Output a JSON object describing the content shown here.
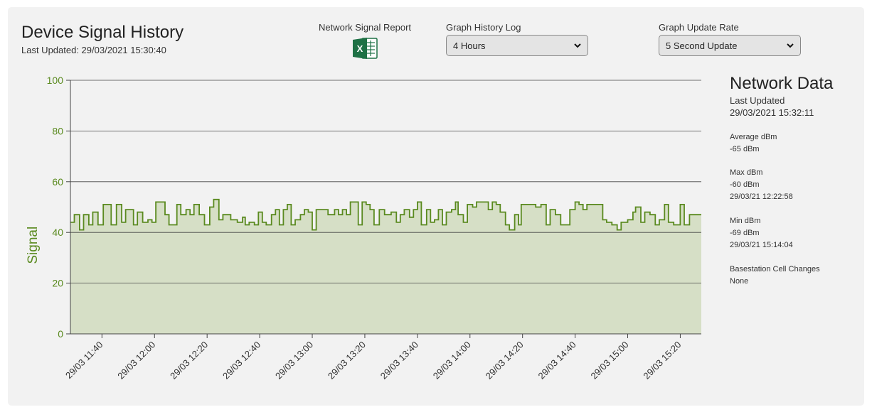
{
  "header": {
    "title": "Device Signal History",
    "last_updated": "Last Updated: 29/03/2021 15:30:40"
  },
  "report": {
    "label": "Network Signal Report",
    "icon": "excel-icon"
  },
  "history_select": {
    "label": "Graph History Log",
    "value": "4 Hours"
  },
  "rate_select": {
    "label": "Graph Update Rate",
    "value": "5 Second Update"
  },
  "colors": {
    "accent": "#5a8a1f",
    "fill": "#d6dfc6",
    "grid": "#444444"
  },
  "chart_data": {
    "type": "area",
    "ylabel": "Signal",
    "xlabel": "",
    "title": "",
    "ylim": [
      0,
      100
    ],
    "yticks": [
      0,
      20,
      40,
      60,
      80,
      100
    ],
    "xticks": [
      "29/03 11:40",
      "29/03 12:00",
      "29/03 12:20",
      "29/03 12:40",
      "29/03 13:00",
      "29/03 13:20",
      "29/03 13:40",
      "29/03 14:00",
      "29/03 14:20",
      "29/03 14:40",
      "29/03 15:00",
      "29/03 15:20"
    ],
    "x_start_minutes": 688,
    "x_end_minutes": 928,
    "series": [
      {
        "step": true,
        "points": [
          [
            688.0,
            44
          ],
          [
            689.5,
            47
          ],
          [
            691.5,
            41
          ],
          [
            693.0,
            47
          ],
          [
            695.0,
            43
          ],
          [
            696.5,
            48
          ],
          [
            698.5,
            43
          ],
          [
            700.5,
            51
          ],
          [
            703.5,
            43
          ],
          [
            705.5,
            51
          ],
          [
            707.5,
            44
          ],
          [
            709.0,
            49
          ],
          [
            712.0,
            43
          ],
          [
            713.5,
            48
          ],
          [
            715.5,
            44
          ],
          [
            717.5,
            45
          ],
          [
            719.0,
            44
          ],
          [
            720.5,
            52
          ],
          [
            724.0,
            47
          ],
          [
            725.5,
            43
          ],
          [
            728.5,
            51
          ],
          [
            730.0,
            47
          ],
          [
            732.0,
            49
          ],
          [
            733.5,
            47
          ],
          [
            735.0,
            51
          ],
          [
            737.0,
            47
          ],
          [
            739.0,
            43
          ],
          [
            741.0,
            50
          ],
          [
            742.5,
            53
          ],
          [
            744.5,
            45
          ],
          [
            746.0,
            47
          ],
          [
            749.0,
            45
          ],
          [
            751.5,
            44
          ],
          [
            753.5,
            46
          ],
          [
            754.5,
            43
          ],
          [
            756.0,
            44
          ],
          [
            758.0,
            43
          ],
          [
            759.5,
            48
          ],
          [
            761.0,
            44
          ],
          [
            762.5,
            43
          ],
          [
            764.5,
            47
          ],
          [
            766.0,
            49
          ],
          [
            767.5,
            43
          ],
          [
            769.0,
            49
          ],
          [
            770.5,
            51
          ],
          [
            772.0,
            43
          ],
          [
            773.5,
            45
          ],
          [
            775.5,
            47
          ],
          [
            777.0,
            49
          ],
          [
            778.5,
            48
          ],
          [
            780.0,
            41
          ],
          [
            781.5,
            49
          ],
          [
            786.0,
            47
          ],
          [
            788.5,
            49
          ],
          [
            790.0,
            47
          ],
          [
            791.5,
            49
          ],
          [
            793.0,
            47
          ],
          [
            794.5,
            52
          ],
          [
            797.5,
            43
          ],
          [
            799.0,
            52
          ],
          [
            800.5,
            51
          ],
          [
            802.0,
            49
          ],
          [
            803.5,
            43
          ],
          [
            805.5,
            49
          ],
          [
            807.5,
            47
          ],
          [
            810.0,
            48
          ],
          [
            812.0,
            44
          ],
          [
            813.5,
            47
          ],
          [
            815.0,
            49
          ],
          [
            817.0,
            46
          ],
          [
            818.5,
            49
          ],
          [
            820.0,
            52
          ],
          [
            821.5,
            43
          ],
          [
            823.5,
            49
          ],
          [
            825.0,
            44
          ],
          [
            826.5,
            45
          ],
          [
            828.0,
            49
          ],
          [
            829.5,
            43
          ],
          [
            831.0,
            48
          ],
          [
            833.0,
            49
          ],
          [
            834.5,
            52
          ],
          [
            835.5,
            47
          ],
          [
            837.5,
            44
          ],
          [
            839.0,
            51
          ],
          [
            841.0,
            50
          ],
          [
            842.5,
            52
          ],
          [
            847.0,
            49
          ],
          [
            848.5,
            52
          ],
          [
            850.0,
            51
          ],
          [
            851.5,
            48
          ],
          [
            853.5,
            43
          ],
          [
            855.0,
            41
          ],
          [
            857.0,
            47
          ],
          [
            858.5,
            43
          ],
          [
            859.5,
            51
          ],
          [
            865.0,
            50
          ],
          [
            867.0,
            51
          ],
          [
            869.0,
            43
          ],
          [
            870.5,
            49
          ],
          [
            872.5,
            47
          ],
          [
            874.5,
            43
          ],
          [
            878.0,
            49
          ],
          [
            880.0,
            52
          ],
          [
            881.5,
            51
          ],
          [
            883.0,
            49
          ],
          [
            884.5,
            51
          ],
          [
            890.5,
            45
          ],
          [
            892.0,
            44
          ],
          [
            894.0,
            43
          ],
          [
            896.0,
            41
          ],
          [
            897.5,
            44
          ],
          [
            900.0,
            45
          ],
          [
            902.0,
            48
          ],
          [
            903.0,
            50
          ],
          [
            905.0,
            44
          ],
          [
            906.5,
            48
          ],
          [
            908.5,
            47
          ],
          [
            910.5,
            43
          ],
          [
            912.0,
            45
          ],
          [
            914.0,
            51
          ],
          [
            915.5,
            44
          ],
          [
            917.5,
            43
          ],
          [
            920.0,
            51
          ],
          [
            921.5,
            43
          ],
          [
            923.5,
            47
          ],
          [
            924.5,
            47
          ]
        ]
      }
    ]
  },
  "network": {
    "title": "Network Data",
    "last_updated_label": "Last Updated",
    "last_updated_value": "29/03/2021 15:32:11",
    "avg_label": "Average dBm",
    "avg_value": "-65 dBm",
    "max_label": "Max dBm",
    "max_value": "-60 dBm",
    "max_time": "29/03/21 12:22:58",
    "min_label": "Min dBm",
    "min_value": "-69 dBm",
    "min_time": "29/03/21 15:14:04",
    "cell_label": "Basestation Cell Changes",
    "cell_value": "None"
  }
}
